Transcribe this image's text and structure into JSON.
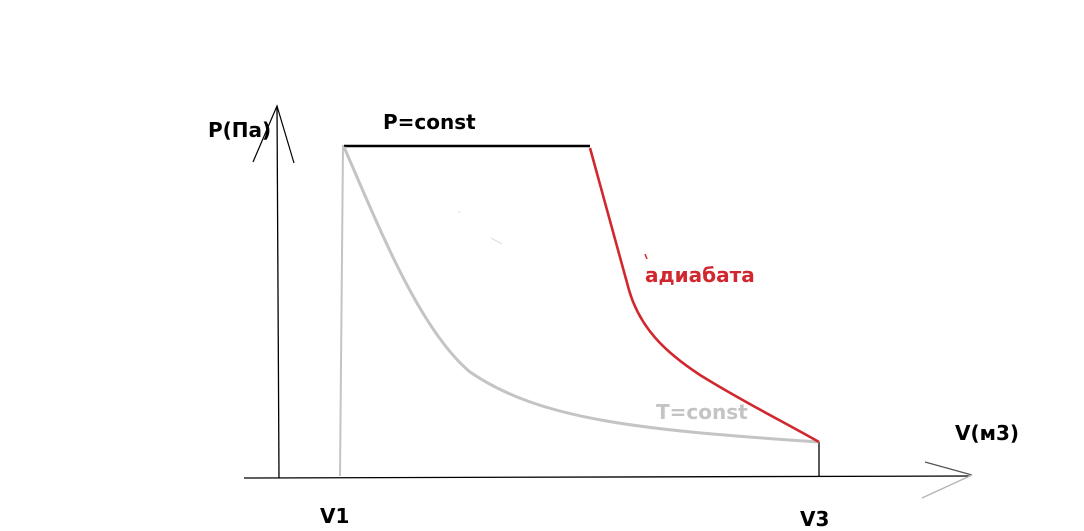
{
  "labels": {
    "p_axis": "P(Па)",
    "v_axis": "V(м3)",
    "v1": "V1",
    "v3": "V3",
    "isobar": "P=const",
    "adiabat": "адиабата",
    "isotherm": "T=const"
  },
  "colors": {
    "axes": "#000000",
    "isobar": "#000000",
    "adiabat": "#d0282e",
    "isotherm": "#c4c4c4",
    "v1_line": "#c4c4c4",
    "v3_line": "#000000"
  }
}
